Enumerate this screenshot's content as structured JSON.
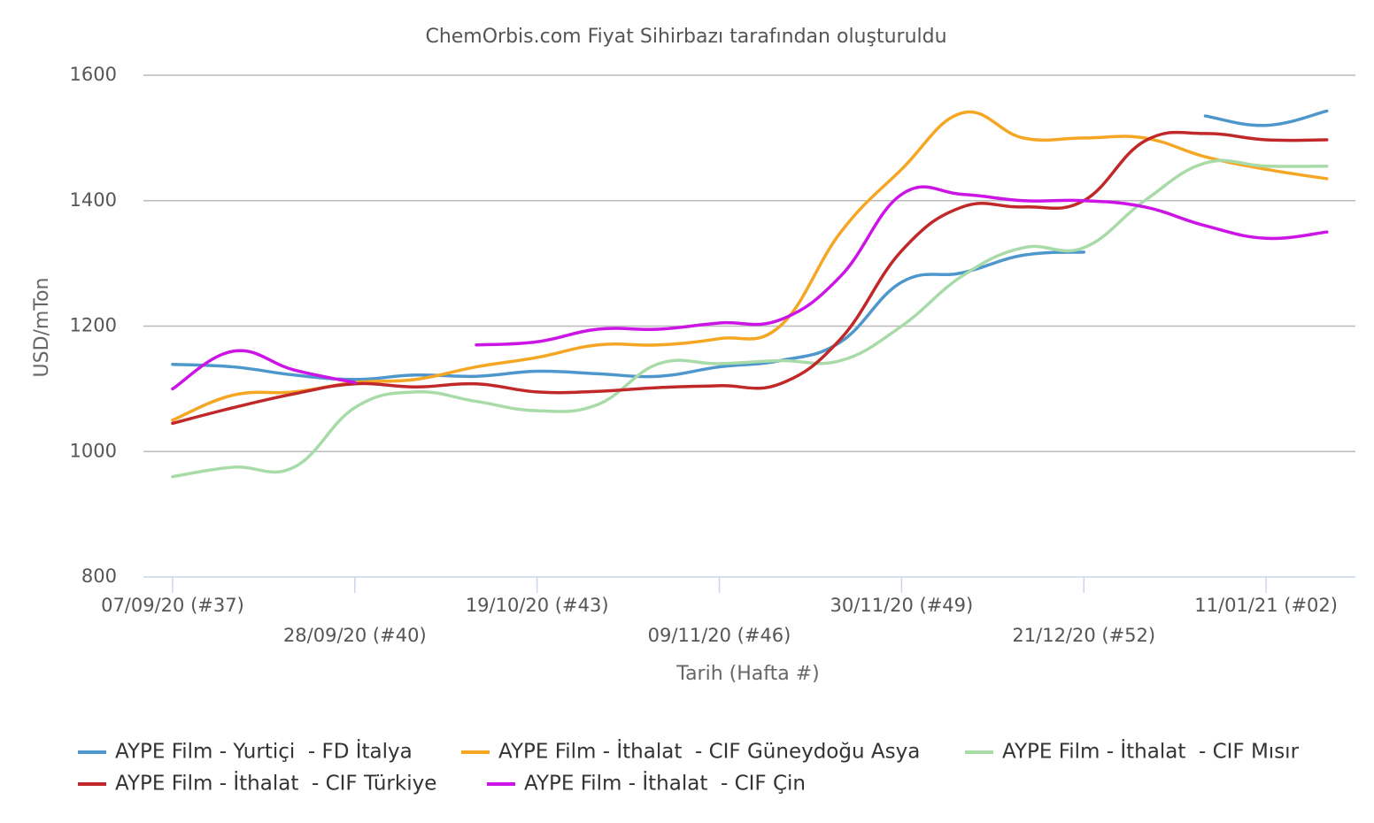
{
  "chart_data": {
    "type": "line",
    "title": "ChemOrbis.com Fiyat Sihirbazı tarafından oluşturuldu",
    "x_label": "Tarih (Hafta #)",
    "y_label": "USD/mTon",
    "categories": [
      "07/09/20 (#37)",
      null,
      null,
      "28/09/20 (#40)",
      null,
      null,
      "19/10/20 (#43)",
      null,
      null,
      "09/11/20 (#46)",
      null,
      null,
      "30/11/20 (#49)",
      null,
      null,
      "21/12/20 (#52)",
      null,
      null,
      "11/01/21 (#02)",
      null
    ],
    "ylim": [
      800,
      1600
    ],
    "yticks": [
      800,
      1000,
      1200,
      1400,
      1600
    ],
    "grid": true,
    "legend": "bottom",
    "series": [
      {
        "name": "AYPE Film - Yurtiçi  - FD İtalya",
        "color": "#4e97cc",
        "values": [
          1139,
          1135,
          1122,
          1115,
          1122,
          1120,
          1128,
          1124,
          1120,
          1135,
          1145,
          1175,
          1270,
          1285,
          1313,
          1318,
          null,
          1535,
          1520,
          1543
        ]
      },
      {
        "name": "AYPE Film - İthalat  - CIF Güneydoğu Asya",
        "color": "#f5a623",
        "values": [
          1050,
          1090,
          1095,
          1110,
          1115,
          1135,
          1150,
          1170,
          1170,
          1180,
          1200,
          1350,
          1450,
          1540,
          1500,
          1500,
          1500,
          1470,
          1450,
          1435
        ]
      },
      {
        "name": "AYPE Film - İthalat  - CIF Mısır",
        "color": "#a8dba8",
        "values": [
          960,
          975,
          975,
          1070,
          1095,
          1080,
          1065,
          1075,
          1140,
          1140,
          1145,
          1145,
          1200,
          1280,
          1325,
          1325,
          1400,
          1460,
          1455,
          1455
        ]
      },
      {
        "name": "AYPE Film - İthalat  - CIF Türkiye",
        "color": "#c0282a",
        "values": [
          1045,
          1070,
          1092,
          1108,
          1103,
          1108,
          1095,
          1096,
          1102,
          1105,
          1108,
          1180,
          1320,
          1390,
          1390,
          1400,
          1495,
          1507,
          1497,
          1497
        ]
      },
      {
        "name": "AYPE Film - İthalat  - CIF Çin",
        "color": "#cc14e6",
        "values": [
          1100,
          1160,
          1130,
          1110,
          null,
          1170,
          1175,
          1195,
          1195,
          1205,
          1210,
          1280,
          1410,
          1410,
          1400,
          1400,
          1390,
          1360,
          1340,
          1350
        ]
      }
    ]
  }
}
